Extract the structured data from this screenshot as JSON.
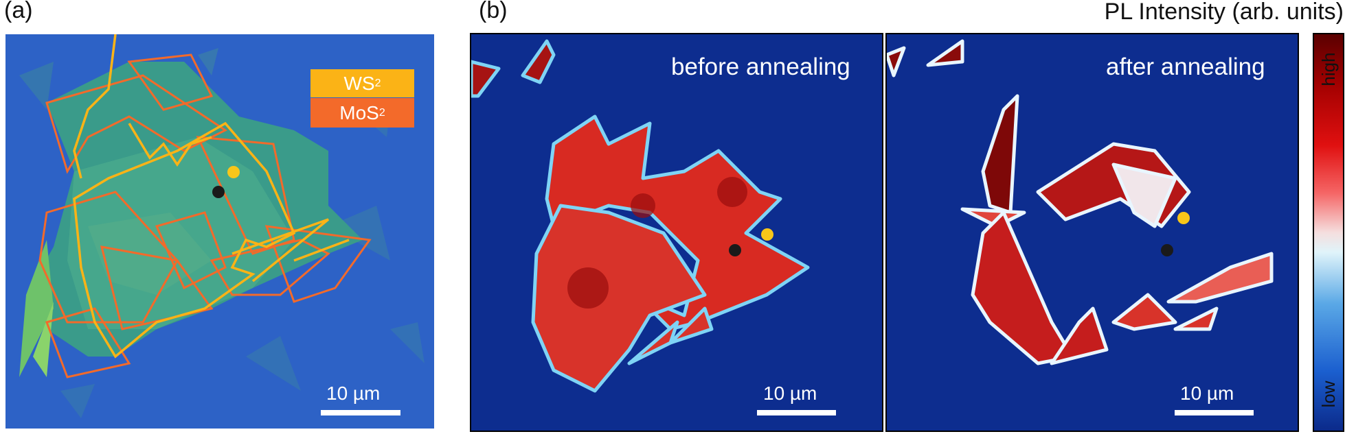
{
  "panel_a": {
    "label": "(a)",
    "legend": [
      {
        "name": "WS",
        "subscript": "2",
        "color": "#fbb316"
      },
      {
        "name": "MoS",
        "subscript": "2",
        "color": "#f36a2a"
      }
    ],
    "scale_bar": "10 µm"
  },
  "panel_b": {
    "label": "(b)",
    "header": "PL Intensity (arb. units)",
    "maps": [
      {
        "caption": "before annealing",
        "scale_bar": "10 µm"
      },
      {
        "caption": "after annealing",
        "scale_bar": "10 µm"
      }
    ],
    "colorbar": {
      "high": "high",
      "low": "low"
    }
  },
  "marker_colors": {
    "yellow": "#f8c619",
    "black": "#1a1a1a"
  }
}
